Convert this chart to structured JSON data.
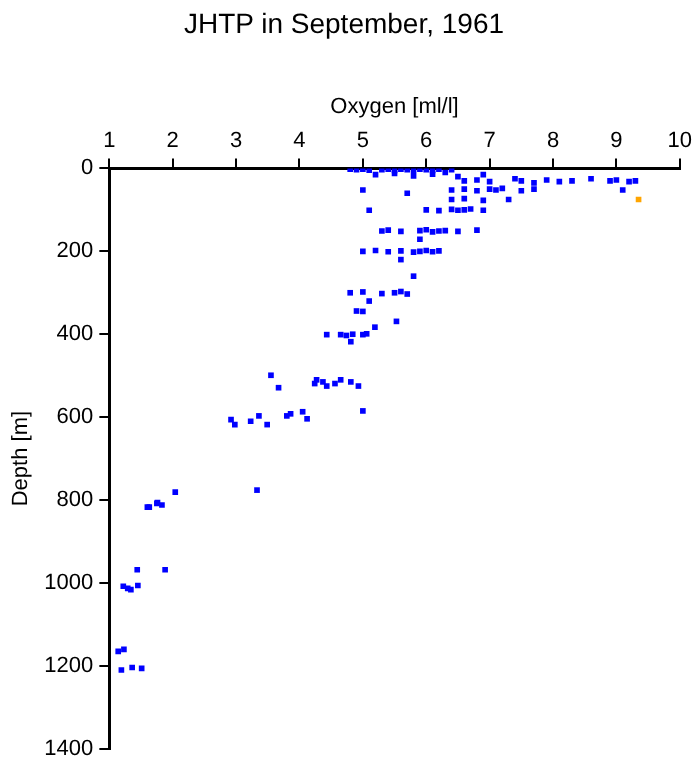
{
  "chart_data": {
    "type": "scatter",
    "title": "JHTP in September, 1961",
    "xlabel": "Oxygen [ml/l]",
    "ylabel": "Depth [m]",
    "xlim": [
      1,
      10
    ],
    "xticks": [
      1,
      2,
      3,
      4,
      5,
      6,
      7,
      8,
      9,
      10
    ],
    "ylim": [
      1400,
      0
    ],
    "yticks": [
      0,
      200,
      400,
      600,
      800,
      1000,
      1200,
      1400
    ],
    "grid": false,
    "legend": false,
    "marker": "square",
    "series": [
      {
        "color": "#0000ff",
        "x": [
          4.8,
          4.9,
          5.0,
          5.1,
          5.3,
          5.4,
          5.5,
          5.6,
          5.7,
          5.8,
          5.9,
          6.0,
          6.1,
          6.2,
          6.4,
          5.2,
          5.5,
          5.8,
          6.1,
          6.3,
          6.5,
          6.9,
          6.6,
          6.8,
          7.0,
          7.4,
          7.5,
          7.7,
          7.9,
          8.1,
          8.3,
          8.6,
          8.9,
          9.0,
          9.2,
          9.3,
          5.0,
          6.4,
          6.6,
          6.8,
          7.0,
          7.1,
          7.2,
          7.5,
          7.7,
          9.1,
          5.7,
          6.4,
          6.6,
          6.9,
          7.3,
          5.1,
          6.0,
          6.2,
          6.4,
          6.5,
          6.6,
          6.7,
          6.9,
          5.3,
          5.4,
          5.6,
          5.9,
          6.0,
          6.1,
          6.2,
          6.3,
          6.5,
          6.8,
          5.9,
          5.0,
          5.2,
          5.4,
          5.6,
          5.8,
          5.9,
          6.0,
          6.1,
          6.2,
          5.6,
          5.8,
          4.8,
          5.0,
          5.3,
          5.5,
          5.6,
          5.7,
          5.1,
          5.0,
          4.9,
          5.53,
          5.19,
          4.43,
          4.65,
          4.74,
          4.84,
          5.0,
          5.06,
          4.81,
          3.55,
          3.67,
          4.24,
          4.27,
          4.37,
          4.43,
          4.56,
          4.65,
          4.81,
          4.93,
          5.0,
          2.92,
          2.98,
          3.23,
          3.36,
          3.49,
          3.8,
          3.86,
          4.05,
          4.12,
          3.33,
          1.6,
          1.76,
          1.83,
          2.04,
          1.63,
          1.75,
          1.44,
          1.88,
          1.22,
          1.29,
          1.34,
          1.45,
          1.14,
          1.23,
          1.19,
          1.36,
          1.51
        ],
        "values": [
          2,
          3,
          2,
          4,
          3,
          2,
          5,
          2,
          3,
          4,
          2,
          3,
          5,
          2,
          3,
          15,
          12,
          18,
          14,
          10,
          20,
          15,
          30,
          28,
          32,
          25,
          30,
          35,
          28,
          32,
          30,
          25,
          30,
          28,
          32,
          30,
          52,
          52,
          50,
          54,
          50,
          52,
          48,
          54,
          50,
          52,
          60,
          75,
          73,
          77,
          75,
          101,
          100,
          102,
          99,
          101,
          100,
          98,
          101,
          151,
          149,
          152,
          150,
          148,
          153,
          151,
          150,
          152,
          149,
          171,
          200,
          198,
          201,
          199,
          202,
          200,
          198,
          201,
          199,
          220,
          260,
          300,
          298,
          302,
          300,
          297,
          303,
          320,
          345,
          344,
          369,
          383,
          401,
          401,
          403,
          400,
          401,
          399,
          418,
          499,
          529,
          519,
          510,
          515,
          525,
          519,
          510,
          515,
          525,
          585,
          606,
          618,
          610,
          597,
          618,
          597,
          592,
          587,
          604,
          776,
          817,
          806,
          812,
          781,
          817,
          808,
          968,
          968,
          1008,
          1013,
          1016,
          1006,
          1165,
          1160,
          1210,
          1204,
          1206
        ]
      },
      {
        "color": "#ffa500",
        "x": [
          9.35
        ],
        "values": [
          75
        ]
      }
    ]
  }
}
